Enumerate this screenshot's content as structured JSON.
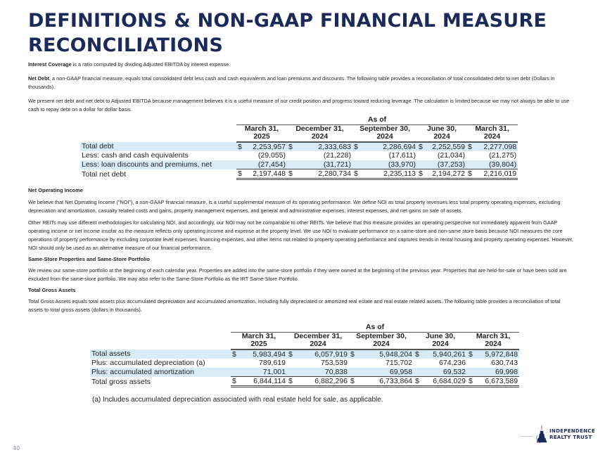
{
  "title": "DEFINITIONS & NON-GAAP FINANCIAL MEASURE RECONCILIATIONS",
  "interest_coverage": {
    "term": "Interest Coverage",
    "text": " is a ratio computed by dividing Adjusted EBITDA by interest expense"
  },
  "net_debt": {
    "term": "Net Debt",
    "text": ", a non-GAAP financial measure, equals total consolidated debt less cash and cash equivalents and loan premiums and discounts. The following table provides a reconciliation of total consolidated debt to net debt (Dollars in thousands)."
  },
  "net_debt_para2": "We present net debt and net debt to Adjusted EBITDA because management believes it is a useful measure of our credit position and progress toward reducing leverage. The calculation is limited because we may not always be able to use cash to repay debt on a dollar for dollar basis.",
  "table1": {
    "as_of": "As of",
    "columns": [
      [
        "March 31,",
        "2025"
      ],
      [
        "December 31,",
        "2024"
      ],
      [
        "September 30,",
        "2024"
      ],
      [
        "June 30,",
        "2024"
      ],
      [
        "March 31,",
        "2024"
      ]
    ],
    "rows": [
      {
        "label": "Total debt",
        "cur": [
          "$",
          "$",
          "$",
          "$",
          "$"
        ],
        "values": [
          "2,253,957",
          "2,333,683",
          "2,286,694",
          "2,252,559",
          "2,277,098"
        ]
      },
      {
        "label": "Less: cash and cash equivalents",
        "cur": [
          "",
          "",
          "",
          "",
          ""
        ],
        "values": [
          "(29,055)",
          "(21,228)",
          "(17,611)",
          "(21,034)",
          "(21,275)"
        ]
      },
      {
        "label": "Less: loan discounts and premiums, net",
        "cur": [
          "",
          "",
          "",
          "",
          ""
        ],
        "values": [
          "(27,454)",
          "(31,721)",
          "(33,970)",
          "(37,253)",
          "(39,804)"
        ]
      },
      {
        "label": "Total net debt",
        "cur": [
          "$",
          "$",
          "$",
          "$",
          "$"
        ],
        "values": [
          "2,197,448",
          "2,280,734",
          "2,235,113",
          "2,194,272",
          "2,216,019"
        ]
      }
    ]
  },
  "noi": {
    "heading": "Net Operating Income",
    "para1": "We believe that Net Operating Income (“NOI”), a non-GAAP financial measure, is a useful supplemental measure of its operating performance. We define NOI as total property revenues less total property operating expenses, excluding depreciation and amortization, casualty related costs and gains, property management expenses, and general and administrative expenses, interest expenses, and net gains on sale of assets.",
    "para2": "Other REITs may use different methodologies for calculating NOI, and accordingly, our NOI may not be comparable to other REITs. We believe that this measure provides an operating perspective not immediately apparent from GAAP operating income or net income insofar as the measure reflects only operating income and expense at the property level. We use NOI to evaluate performance on a same-store and non-same store basis because NOI measures the core operations of property performance by excluding corporate level expenses, financing expenses, and other items not related to property operating performance and captures trends in rental housing and property operating expenses. However, NOI should only be used as an alternative measure of our financial performance."
  },
  "same_store": {
    "heading": "Same-Store Properties and Same-Store Portfolio",
    "para": "We review our same-store portfolio at the beginning of each calendar year.  Properties are added into the same-store portfolio if they were owned at the beginning of the previous year.  Properties that are held-for-sale or have been sold are excluded from the same-store portfolio. We may also refer to the Same-Store Portfolio as the IRT Same-Store Portfolio."
  },
  "tga": {
    "heading": "Total Gross Assets",
    "para": "Total Gross Assets equals total assets plus accumulated depreciation and accumulated amortization, including fully depreciated or amortized real estate and real estate related assets.  The following table provides a reconciliation of total assets to total gross assets (dollars in thousands)."
  },
  "table2": {
    "as_of": "As of",
    "columns": [
      [
        "March 31,",
        "2025"
      ],
      [
        "December 31,",
        "2024"
      ],
      [
        "September 30,",
        "2024"
      ],
      [
        "June 30,",
        "2024"
      ],
      [
        "March 31,",
        "2024"
      ]
    ],
    "rows": [
      {
        "label": "Total assets",
        "cur": [
          "$",
          "$",
          "$",
          "$",
          "$"
        ],
        "values": [
          "5,983,494",
          "6,057,919",
          "5,948,204",
          "5,940,261",
          "5,972,848"
        ]
      },
      {
        "label": "Plus: accumulated depreciation (a)",
        "cur": [
          "",
          "",
          "",
          "",
          ""
        ],
        "values": [
          "789,619",
          "753,539",
          "715,702",
          "674,236",
          "630,743"
        ]
      },
      {
        "label": "Plus: accumulated amortization",
        "cur": [
          "",
          "",
          "",
          "",
          ""
        ],
        "values": [
          "71,001",
          "70,838",
          "69,958",
          "69,532",
          "69,998"
        ]
      },
      {
        "label": "Total gross assets",
        "cur": [
          "$",
          "$",
          "$",
          "$",
          "$"
        ],
        "values": [
          "6,844,114",
          "6,882,296",
          "6,733,864",
          "6,684,029",
          "6,673,589"
        ]
      }
    ]
  },
  "footnote": "(a)  Includes accumulated depreciation associated with real estate held for sale, as applicable.",
  "page_number": "40",
  "logo": {
    "line1": "INDEPENDENCE",
    "line2": "REALTY TRUST"
  },
  "colors": {
    "title": "#1c2a5a",
    "row_highlight": "#d8ecf8"
  }
}
